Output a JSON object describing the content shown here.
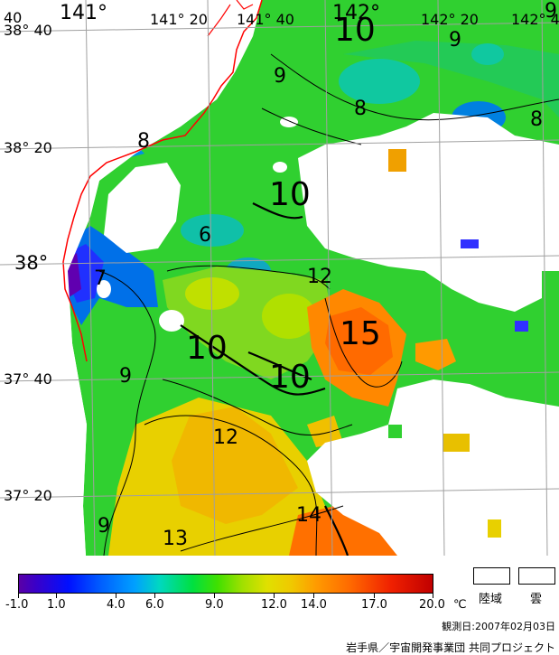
{
  "map": {
    "lon_labels": [
      "141°",
      "141° 20",
      "141° 40",
      "142°",
      "142° 20",
      "142° 4"
    ],
    "corner_label": "40",
    "lat_labels": [
      "38° 40",
      "38° 20",
      "38°",
      "37° 40",
      "37° 20"
    ],
    "contour_labels": [
      "10",
      "9",
      "8",
      "8",
      "9",
      "8",
      "10",
      "6",
      "7",
      "12",
      "15",
      "10",
      "10",
      "9",
      "12",
      "13",
      "14",
      "9",
      "9"
    ]
  },
  "legend": {
    "ticks": [
      "-1.0",
      "1.0",
      "4.0",
      "6.0",
      "9.0",
      "12.0",
      "14.0",
      "17.0",
      "20.0"
    ],
    "unit": "℃",
    "land_label": "陸域",
    "cloud_label": "雲",
    "observation_date": "観測日:2007年02月03日",
    "credit": "岩手県／宇宙開発事業団  共同プロジェクト"
  },
  "colors": {
    "land_outline": "#ff0000",
    "cloud": "#ffffff",
    "grid": "#a0a0a0"
  }
}
